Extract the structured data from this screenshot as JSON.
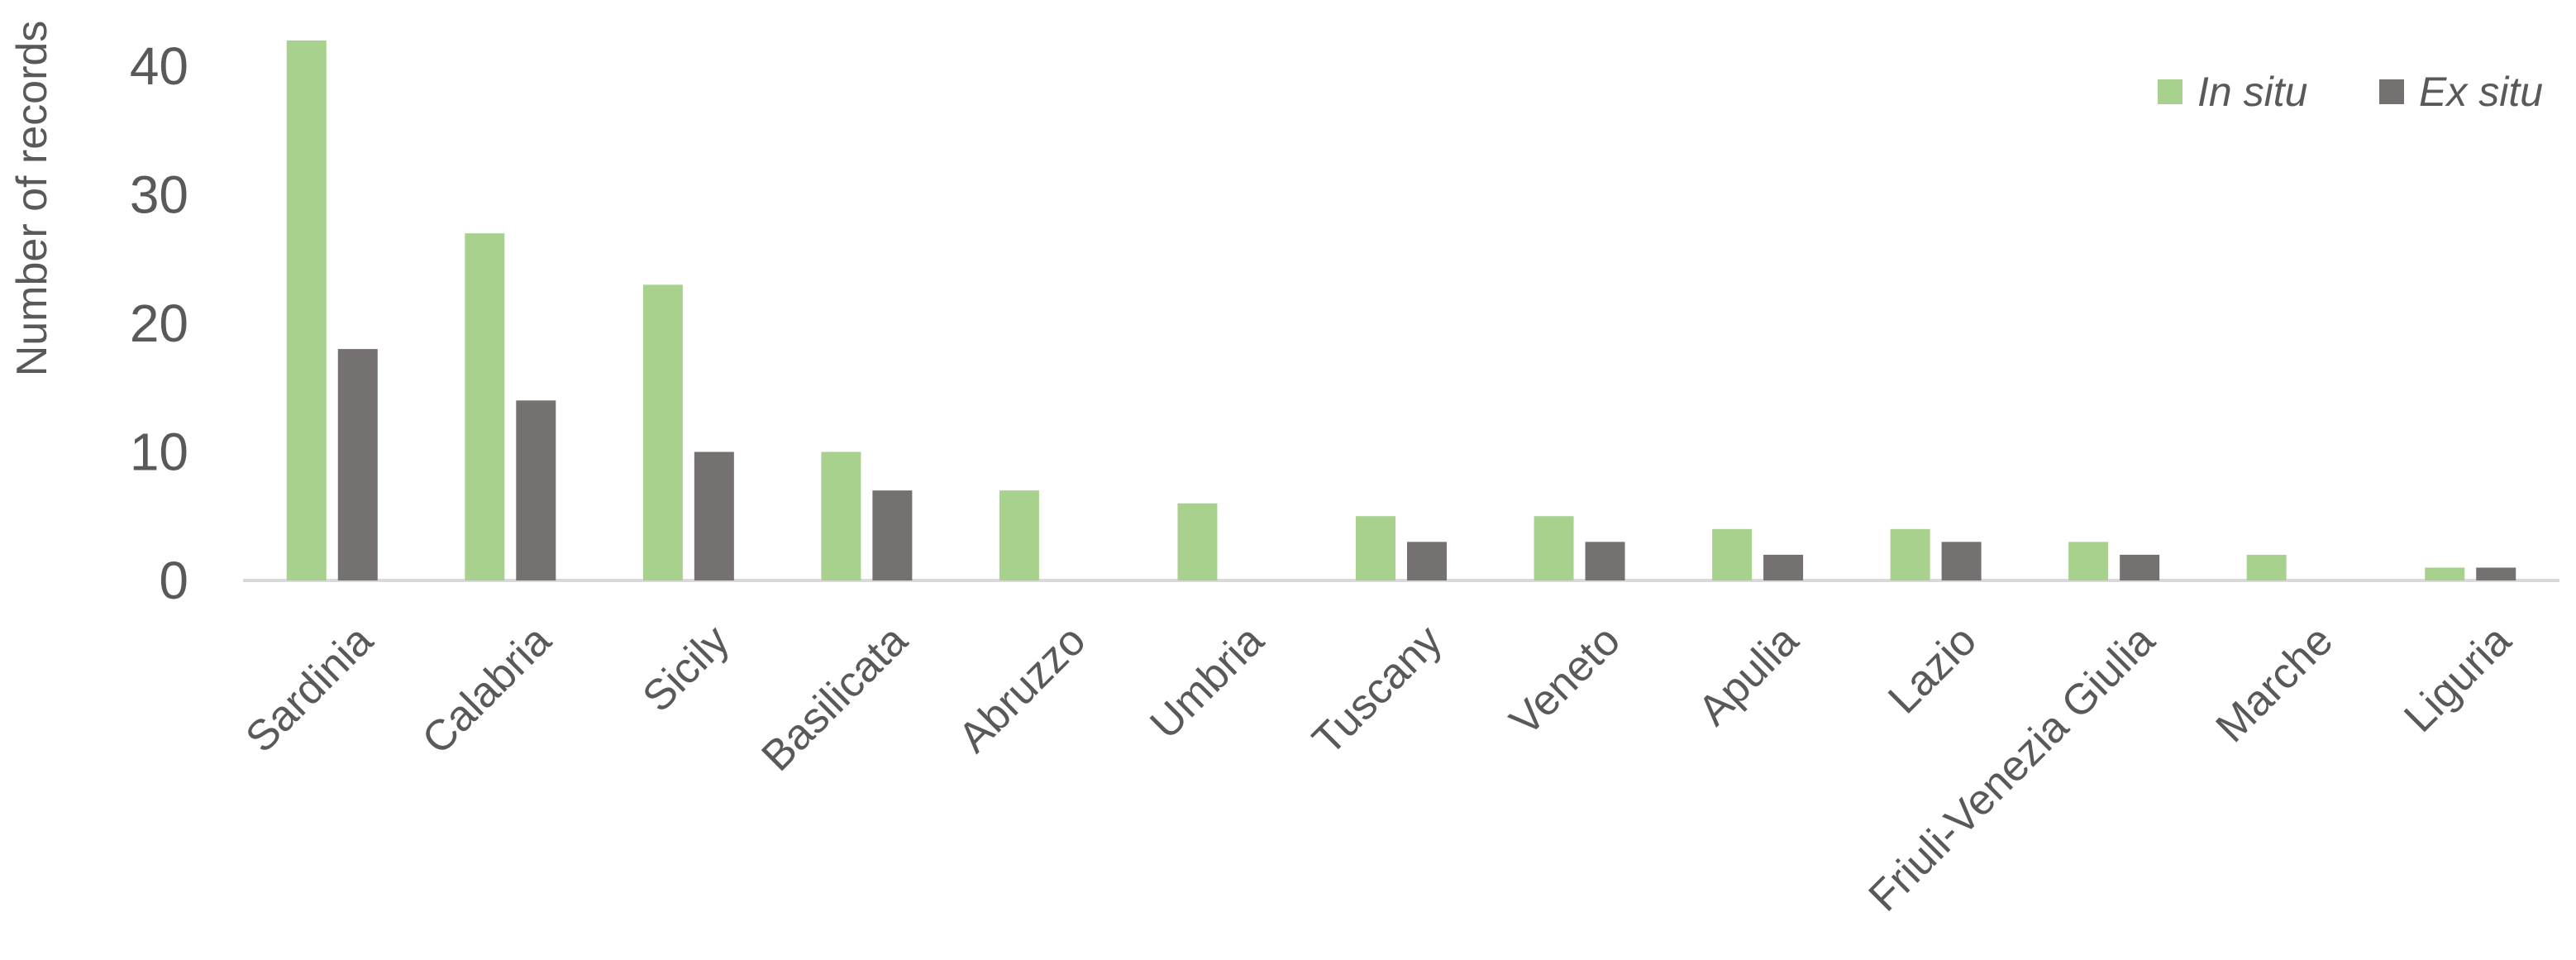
{
  "chart_data": {
    "type": "bar",
    "categories": [
      "Sardinia",
      "Calabria",
      "Sicily",
      "Basilicata",
      "Abruzzo",
      "Umbria",
      "Tuscany",
      "Veneto",
      "Apulia",
      "Lazio",
      "Friuli-Venezia Giulia",
      "Marche",
      "Liguria"
    ],
    "series": [
      {
        "name": "In situ",
        "color": "#a9d18e",
        "values": [
          42,
          27,
          23,
          10,
          7,
          6,
          5,
          5,
          4,
          4,
          3,
          2,
          1
        ]
      },
      {
        "name": "Ex situ",
        "color": "#767171",
        "values": [
          18,
          14,
          10,
          7,
          0,
          0,
          3,
          3,
          2,
          3,
          2,
          0,
          1
        ]
      }
    ],
    "title": "",
    "xlabel": "",
    "ylabel": "Number of  records",
    "ylim": [
      0,
      45
    ],
    "yticks": [
      0,
      10,
      20,
      30,
      40
    ],
    "grid": false,
    "legend_position": "top-right",
    "axis_color": "#d9d9d9"
  }
}
